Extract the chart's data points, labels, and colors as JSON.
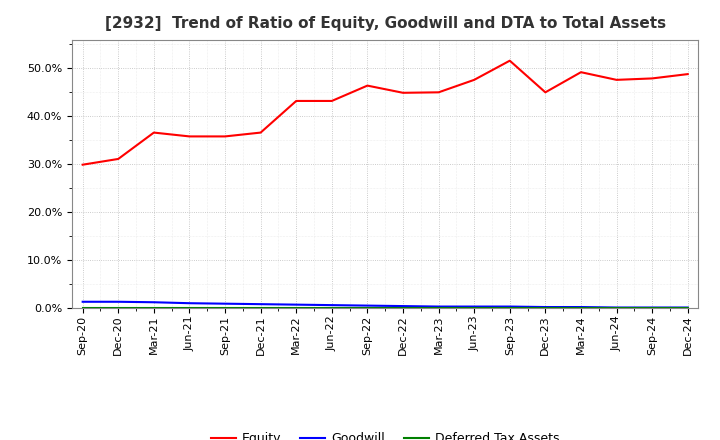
{
  "title": "[2932]  Trend of Ratio of Equity, Goodwill and DTA to Total Assets",
  "x_labels": [
    "Sep-20",
    "Dec-20",
    "Mar-21",
    "Jun-21",
    "Sep-21",
    "Dec-21",
    "Mar-22",
    "Jun-22",
    "Sep-22",
    "Dec-22",
    "Mar-23",
    "Jun-23",
    "Sep-23",
    "Dec-23",
    "Mar-24",
    "Jun-24",
    "Sep-24",
    "Dec-24"
  ],
  "equity_vals": [
    0.299,
    0.311,
    0.366,
    0.358,
    0.358,
    0.366,
    0.432,
    0.432,
    0.464,
    0.449,
    0.45,
    0.476,
    0.516,
    0.45,
    0.492,
    0.476,
    0.479,
    0.488
  ],
  "goodwill_vals": [
    0.013,
    0.013,
    0.012,
    0.01,
    0.009,
    0.008,
    0.007,
    0.006,
    0.005,
    0.004,
    0.003,
    0.003,
    0.003,
    0.002,
    0.002,
    0.001,
    0.001,
    0.001
  ],
  "dta_vals": [
    0.0,
    0.0,
    0.0,
    0.0,
    0.0,
    0.0,
    0.0,
    0.0,
    0.0,
    0.0,
    0.0,
    0.0,
    0.0,
    0.0,
    0.0,
    0.0,
    0.0,
    0.0
  ],
  "equity_color": "#FF0000",
  "goodwill_color": "#0000FF",
  "dta_color": "#008000",
  "ylim": [
    0.0,
    0.56
  ],
  "yticks": [
    0.0,
    0.1,
    0.2,
    0.3,
    0.4,
    0.5
  ],
  "background_color": "#FFFFFF",
  "grid_color": "#AAAAAA",
  "title_fontsize": 11,
  "tick_fontsize": 8,
  "legend_labels": [
    "Equity",
    "Goodwill",
    "Deferred Tax Assets"
  ],
  "legend_fontsize": 9
}
